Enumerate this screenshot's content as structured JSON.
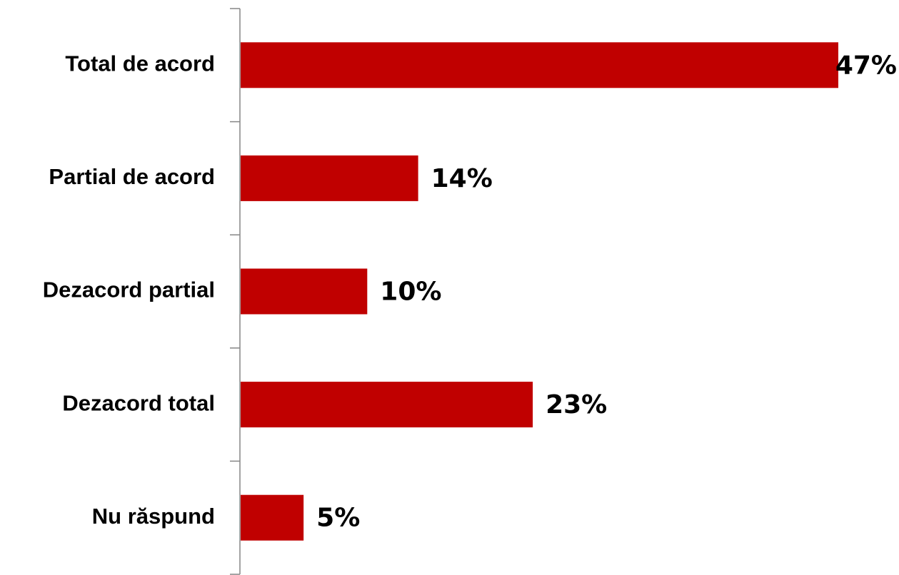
{
  "chart_data": {
    "type": "bar",
    "orientation": "horizontal",
    "categories": [
      "Total de acord",
      "Partial de acord",
      "Dezacord partial",
      "Dezacord total",
      "Nu răspund"
    ],
    "values": [
      47,
      14,
      10,
      23,
      5
    ],
    "value_labels": [
      "47%",
      "14%",
      "10%",
      "23%",
      "5%"
    ],
    "unit": "%",
    "xlim": [
      0,
      47
    ],
    "title": "",
    "xlabel": "",
    "ylabel": "",
    "grid": false,
    "legend": "none",
    "bar_color": "#C00000"
  }
}
